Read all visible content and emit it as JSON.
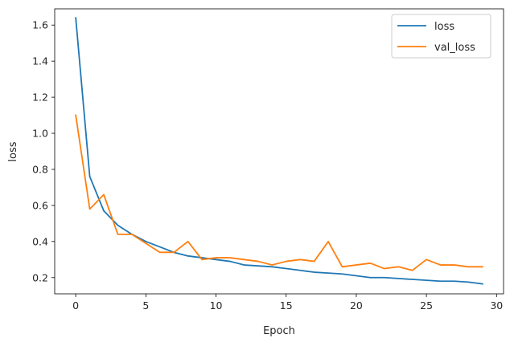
{
  "chart_data": {
    "type": "line",
    "title": "",
    "xlabel": "Epoch",
    "ylabel": "loss",
    "xlim": [
      -1.5,
      30.5
    ],
    "ylim": [
      0.11,
      1.69
    ],
    "xticks": [
      0,
      5,
      10,
      15,
      20,
      25,
      30
    ],
    "yticks": [
      0.2,
      0.4,
      0.6,
      0.8,
      1.0,
      1.2,
      1.4,
      1.6
    ],
    "xtick_labels": [
      "0",
      "5",
      "10",
      "15",
      "20",
      "25",
      "30"
    ],
    "ytick_labels": [
      "0.2",
      "0.4",
      "0.6",
      "0.8",
      "1.0",
      "1.2",
      "1.4",
      "1.6"
    ],
    "grid": false,
    "legend_position": "top-right",
    "x": [
      0,
      1,
      2,
      3,
      4,
      5,
      6,
      7,
      8,
      9,
      10,
      11,
      12,
      13,
      14,
      15,
      16,
      17,
      18,
      19,
      20,
      21,
      22,
      23,
      24,
      25,
      26,
      27,
      28,
      29
    ],
    "series": [
      {
        "name": "loss",
        "color": "#1f77b4",
        "values": [
          1.64,
          0.76,
          0.57,
          0.49,
          0.44,
          0.4,
          0.37,
          0.34,
          0.32,
          0.31,
          0.3,
          0.29,
          0.27,
          0.265,
          0.26,
          0.25,
          0.24,
          0.23,
          0.225,
          0.22,
          0.21,
          0.2,
          0.2,
          0.195,
          0.19,
          0.185,
          0.18,
          0.18,
          0.175,
          0.165
        ]
      },
      {
        "name": "val_loss",
        "color": "#ff7f0e",
        "values": [
          1.1,
          0.58,
          0.66,
          0.44,
          0.44,
          0.39,
          0.34,
          0.34,
          0.4,
          0.3,
          0.31,
          0.31,
          0.3,
          0.29,
          0.27,
          0.29,
          0.3,
          0.29,
          0.4,
          0.26,
          0.27,
          0.28,
          0.25,
          0.26,
          0.24,
          0.3,
          0.27,
          0.27,
          0.26,
          0.26
        ]
      }
    ]
  }
}
